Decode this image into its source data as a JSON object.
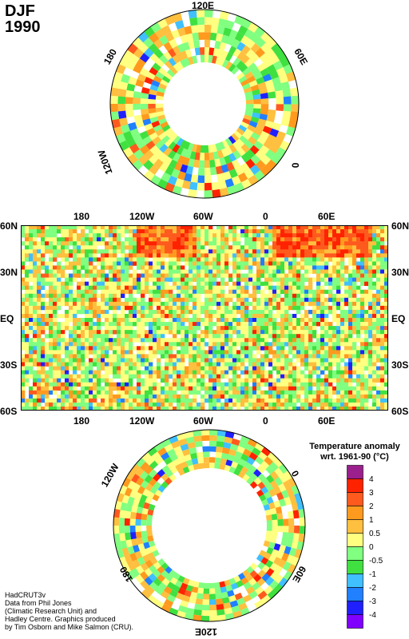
{
  "title": {
    "season": "DJF",
    "year": "1990"
  },
  "north_polar": {
    "labels": {
      "top": "120E",
      "right_upper": "60E",
      "right_lower": "0",
      "left_upper": "180",
      "left_lower": "120W"
    }
  },
  "equatorial": {
    "top_ticks": [
      "180",
      "120W",
      "60W",
      "0",
      "60E"
    ],
    "bottom_ticks": [
      "180",
      "120W",
      "60W",
      "0",
      "60E"
    ],
    "left_lat": [
      "60N",
      "30N",
      "EQ",
      "30S",
      "60S"
    ],
    "right_lat": [
      "60N",
      "30N",
      "EQ",
      "30S",
      "60S"
    ]
  },
  "south_polar": {
    "labels": {
      "top_right": "0",
      "top_left": "120W",
      "bottom_left": "180",
      "right_lower": "60E",
      "bottom": "120E"
    }
  },
  "legend": {
    "title_line1": "Temperature anomaly",
    "title_line2": "wrt. 1961-90  (°C)",
    "levels": [
      "4",
      "3",
      "2",
      "1",
      "0.5",
      "0",
      "-0.5",
      "-1",
      "-2",
      "-3",
      "-4"
    ],
    "colors": [
      "#9b1f8c",
      "#ff2200",
      "#ff5a1e",
      "#ff9a1e",
      "#ffbf3f",
      "#ffff80",
      "#80ff80",
      "#40e040",
      "#40c0ff",
      "#2080ff",
      "#2020ff",
      "#8000ff"
    ]
  },
  "credit": {
    "line1": "HadCRUT3v",
    "line2": "Data from Phil Jones",
    "line3": "(Climatic Research Unit) and",
    "line4": "Hadley Centre.  Graphics produced",
    "line5": "by Tim Osborn and Mike Salmon (CRU)."
  }
}
